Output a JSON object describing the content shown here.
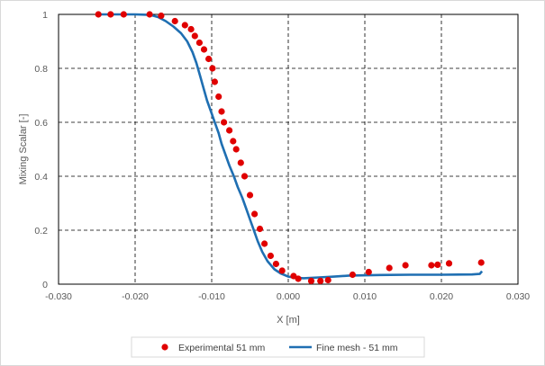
{
  "chart_data": {
    "type": "scatter",
    "xlabel": "X [m]",
    "ylabel": "Mixing Scalar [-]",
    "xlim": [
      -0.03,
      0.03
    ],
    "ylim": [
      0,
      1
    ],
    "x_ticks": [
      "-0.030",
      "-0.020",
      "-0.010",
      "0.000",
      "0.010",
      "0.020",
      "0.030"
    ],
    "y_ticks": [
      "0",
      "0.2",
      "0.4",
      "0.6",
      "0.8",
      "1"
    ],
    "grid": true,
    "grid_style": "dashed",
    "legend_position": "bottom",
    "series": [
      {
        "name": "Experimental 51 mm",
        "type": "scatter",
        "color": "#e00000",
        "points": [
          [
            -0.0248,
            1.0
          ],
          [
            -0.0232,
            1.0
          ],
          [
            -0.0215,
            1.0
          ],
          [
            -0.0181,
            1.0
          ],
          [
            -0.0166,
            0.995
          ],
          [
            -0.0148,
            0.975
          ],
          [
            -0.0135,
            0.96
          ],
          [
            -0.0127,
            0.945
          ],
          [
            -0.0122,
            0.92
          ],
          [
            -0.0116,
            0.895
          ],
          [
            -0.011,
            0.87
          ],
          [
            -0.0104,
            0.835
          ],
          [
            -0.0099,
            0.8
          ],
          [
            -0.0096,
            0.75
          ],
          [
            -0.0091,
            0.695
          ],
          [
            -0.0087,
            0.64
          ],
          [
            -0.0084,
            0.6
          ],
          [
            -0.0077,
            0.57
          ],
          [
            -0.0072,
            0.53
          ],
          [
            -0.0068,
            0.5
          ],
          [
            -0.0062,
            0.45
          ],
          [
            -0.0057,
            0.4
          ],
          [
            -0.005,
            0.33
          ],
          [
            -0.0044,
            0.26
          ],
          [
            -0.0037,
            0.205
          ],
          [
            -0.0031,
            0.15
          ],
          [
            -0.0023,
            0.105
          ],
          [
            -0.0016,
            0.075
          ],
          [
            -0.0008,
            0.05
          ],
          [
            0.0007,
            0.03
          ],
          [
            0.0013,
            0.02
          ],
          [
            0.003,
            0.012
          ],
          [
            0.0042,
            0.012
          ],
          [
            0.0052,
            0.015
          ],
          [
            0.0084,
            0.035
          ],
          [
            0.0105,
            0.045
          ],
          [
            0.0132,
            0.06
          ],
          [
            0.0153,
            0.07
          ],
          [
            0.0187,
            0.07
          ],
          [
            0.0195,
            0.072
          ],
          [
            0.021,
            0.077
          ],
          [
            0.0252,
            0.08
          ]
        ]
      },
      {
        "name": "Fine mesh - 51 mm",
        "type": "line",
        "color": "#1f6fb2",
        "points": [
          [
            -0.025,
            1.0
          ],
          [
            -0.02,
            1.0
          ],
          [
            -0.018,
            0.998
          ],
          [
            -0.017,
            0.99
          ],
          [
            -0.016,
            0.975
          ],
          [
            -0.015,
            0.955
          ],
          [
            -0.014,
            0.93
          ],
          [
            -0.0132,
            0.9
          ],
          [
            -0.0125,
            0.86
          ],
          [
            -0.012,
            0.82
          ],
          [
            -0.0115,
            0.77
          ],
          [
            -0.011,
            0.72
          ],
          [
            -0.0106,
            0.68
          ],
          [
            -0.0101,
            0.64
          ],
          [
            -0.0096,
            0.6
          ],
          [
            -0.0091,
            0.56
          ],
          [
            -0.0087,
            0.52
          ],
          [
            -0.0082,
            0.48
          ],
          [
            -0.0077,
            0.44
          ],
          [
            -0.0071,
            0.4
          ],
          [
            -0.0066,
            0.36
          ],
          [
            -0.006,
            0.32
          ],
          [
            -0.0055,
            0.28
          ],
          [
            -0.005,
            0.24
          ],
          [
            -0.0045,
            0.2
          ],
          [
            -0.004,
            0.16
          ],
          [
            -0.0034,
            0.12
          ],
          [
            -0.0027,
            0.085
          ],
          [
            -0.0018,
            0.055
          ],
          [
            -0.001,
            0.04
          ],
          [
            0.0,
            0.028
          ],
          [
            0.001,
            0.024
          ],
          [
            0.002,
            0.022
          ],
          [
            0.004,
            0.025
          ],
          [
            0.006,
            0.028
          ],
          [
            0.008,
            0.032
          ],
          [
            0.012,
            0.034
          ],
          [
            0.016,
            0.035
          ],
          [
            0.02,
            0.035
          ],
          [
            0.024,
            0.036
          ],
          [
            0.025,
            0.038
          ],
          [
            0.0253,
            0.048
          ]
        ]
      }
    ]
  }
}
